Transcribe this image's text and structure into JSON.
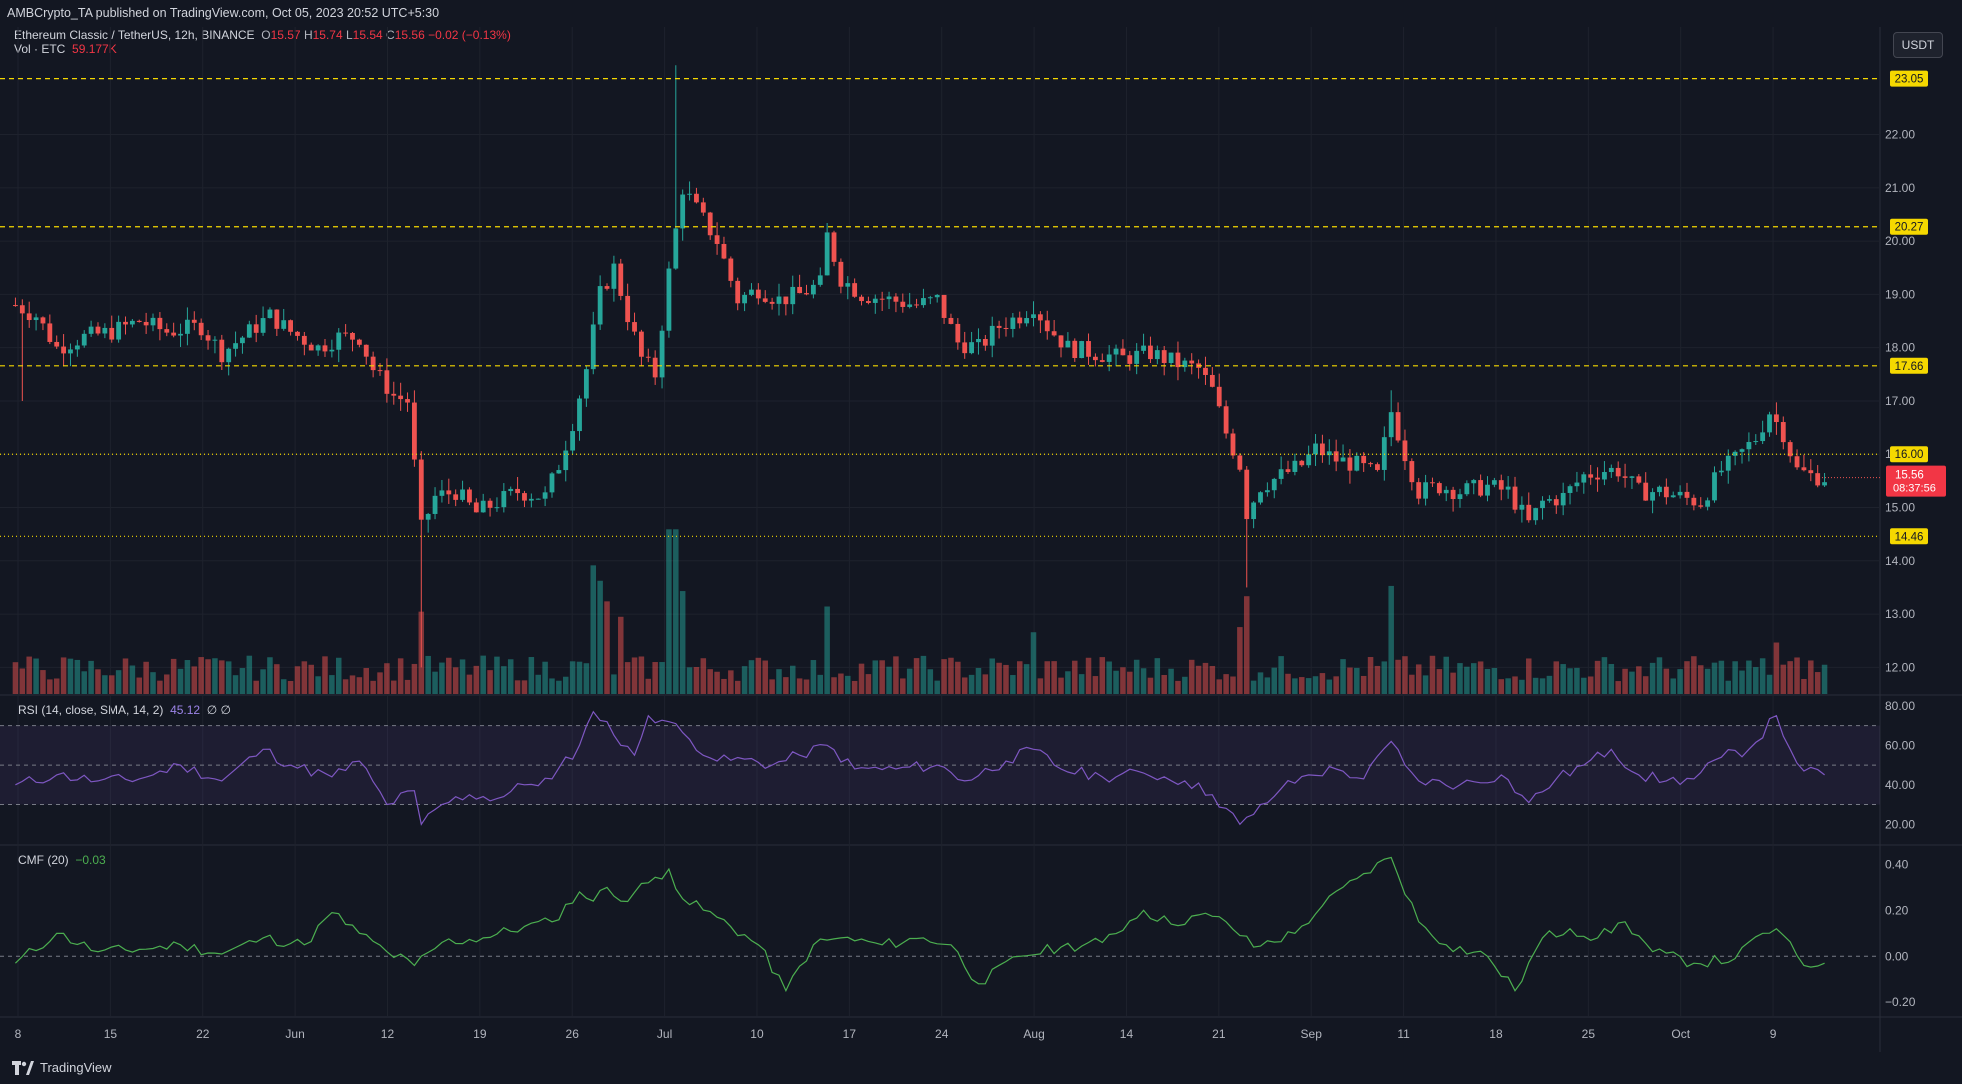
{
  "header": {
    "published_text": "AMBCrypto_TA published on TradingView.com, Oct 05, 2023 20:52 UTC+5:30"
  },
  "legend": {
    "symbol": "Ethereum Classic / TetherUS, 12h, BINANCE",
    "o_label": "O",
    "o_value": "15.57",
    "h_label": "H",
    "h_value": "15.74",
    "l_label": "L",
    "l_value": "15.54",
    "c_label": "C",
    "c_value": "15.56",
    "change": "−0.02 (−0.13%)",
    "vol_label": "Vol · ETC",
    "vol_value": "59.177K"
  },
  "unit_button": "USDT",
  "footer": {
    "brand": "TradingView"
  },
  "colors": {
    "background": "#131722",
    "up": "#26a69a",
    "down": "#ef5350",
    "level_line": "#f5d800",
    "rsi_line": "#7e57c2",
    "cmf_line": "#4caf50"
  },
  "chart_data": [
    {
      "type": "candlestick",
      "title": "Ethereum Classic / TetherUS, 12h, BINANCE",
      "x_ticks": [
        "8",
        "15",
        "22",
        "Jun",
        "12",
        "19",
        "26",
        "Jul",
        "10",
        "17",
        "24",
        "Aug",
        "14",
        "21",
        "Sep",
        "11",
        "18",
        "25",
        "Oct",
        "9"
      ],
      "y_ticks": [
        "12.00",
        "13.00",
        "14.00",
        "15.00",
        "16.00",
        "17.00",
        "18.00",
        "19.00",
        "20.00",
        "21.00",
        "22.00"
      ],
      "ylim": [
        11.5,
        24.0
      ],
      "horizontal_levels": [
        {
          "label": "23.05",
          "value": 23.05,
          "style": "dashed"
        },
        {
          "label": "20.27",
          "value": 20.27,
          "style": "dashed"
        },
        {
          "label": "17.66",
          "value": 17.66,
          "style": "dashed"
        },
        {
          "label": "16.00",
          "value": 16.0,
          "style": "dotted"
        },
        {
          "label": "14.46",
          "value": 14.46,
          "style": "dotted"
        }
      ],
      "last_price": {
        "price": "15.56",
        "countdown": "08:37:56"
      },
      "close_path": [
        {
          "t": 0,
          "c": 18.8
        },
        {
          "t": 3,
          "c": 18.6
        },
        {
          "t": 6,
          "c": 18.0
        },
        {
          "t": 10,
          "c": 18.2
        },
        {
          "t": 14,
          "c": 18.3
        },
        {
          "t": 18,
          "c": 18.5
        },
        {
          "t": 22,
          "c": 18.3
        },
        {
          "t": 27,
          "c": 18.4
        },
        {
          "t": 30,
          "c": 17.9
        },
        {
          "t": 34,
          "c": 18.3
        },
        {
          "t": 37,
          "c": 18.6
        },
        {
          "t": 40,
          "c": 18.3
        },
        {
          "t": 44,
          "c": 18.0
        },
        {
          "t": 47,
          "c": 18.2
        },
        {
          "t": 50,
          "c": 18.2
        },
        {
          "t": 52,
          "c": 17.6
        },
        {
          "t": 55,
          "c": 17.1
        },
        {
          "t": 57,
          "c": 17.0
        },
        {
          "t": 59,
          "c": 14.6
        },
        {
          "t": 61,
          "c": 15.2
        },
        {
          "t": 64,
          "c": 15.3
        },
        {
          "t": 67,
          "c": 14.9
        },
        {
          "t": 70,
          "c": 15.1
        },
        {
          "t": 73,
          "c": 15.3
        },
        {
          "t": 77,
          "c": 15.2
        },
        {
          "t": 79,
          "c": 15.8
        },
        {
          "t": 81,
          "c": 16.6
        },
        {
          "t": 83,
          "c": 17.6
        },
        {
          "t": 85,
          "c": 19.0
        },
        {
          "t": 87,
          "c": 19.5
        },
        {
          "t": 89,
          "c": 18.6
        },
        {
          "t": 91,
          "c": 17.8
        },
        {
          "t": 93,
          "c": 17.5
        },
        {
          "t": 95,
          "c": 19.4
        },
        {
          "t": 97,
          "c": 21.0
        },
        {
          "t": 99,
          "c": 20.6
        },
        {
          "t": 102,
          "c": 20.0
        },
        {
          "t": 105,
          "c": 18.9
        },
        {
          "t": 108,
          "c": 19.1
        },
        {
          "t": 111,
          "c": 18.9
        },
        {
          "t": 114,
          "c": 19.0
        },
        {
          "t": 117,
          "c": 19.2
        },
        {
          "t": 118,
          "c": 20.1
        },
        {
          "t": 120,
          "c": 19.3
        },
        {
          "t": 123,
          "c": 19.0
        },
        {
          "t": 127,
          "c": 18.9
        },
        {
          "t": 131,
          "c": 18.8
        },
        {
          "t": 134,
          "c": 18.9
        },
        {
          "t": 137,
          "c": 18.1
        },
        {
          "t": 140,
          "c": 18.0
        },
        {
          "t": 143,
          "c": 18.4
        },
        {
          "t": 146,
          "c": 18.6
        },
        {
          "t": 148,
          "c": 18.8
        },
        {
          "t": 150,
          "c": 18.4
        },
        {
          "t": 153,
          "c": 18.0
        },
        {
          "t": 157,
          "c": 17.9
        },
        {
          "t": 161,
          "c": 17.8
        },
        {
          "t": 165,
          "c": 17.9
        },
        {
          "t": 169,
          "c": 17.7
        },
        {
          "t": 172,
          "c": 17.6
        },
        {
          "t": 174,
          "c": 17.2
        },
        {
          "t": 176,
          "c": 16.4
        },
        {
          "t": 178,
          "c": 15.8
        },
        {
          "t": 179,
          "c": 14.9
        },
        {
          "t": 181,
          "c": 15.4
        },
        {
          "t": 184,
          "c": 15.6
        },
        {
          "t": 187,
          "c": 15.8
        },
        {
          "t": 189,
          "c": 16.1
        },
        {
          "t": 192,
          "c": 15.9
        },
        {
          "t": 195,
          "c": 15.8
        },
        {
          "t": 198,
          "c": 15.6
        },
        {
          "t": 200,
          "c": 16.8
        },
        {
          "t": 202,
          "c": 16.0
        },
        {
          "t": 204,
          "c": 15.3
        },
        {
          "t": 207,
          "c": 15.4
        },
        {
          "t": 210,
          "c": 15.3
        },
        {
          "t": 214,
          "c": 15.4
        },
        {
          "t": 217,
          "c": 15.3
        },
        {
          "t": 220,
          "c": 14.7
        },
        {
          "t": 222,
          "c": 15.1
        },
        {
          "t": 225,
          "c": 15.2
        },
        {
          "t": 228,
          "c": 15.6
        },
        {
          "t": 231,
          "c": 15.7
        },
        {
          "t": 233,
          "c": 15.7
        },
        {
          "t": 236,
          "c": 15.3
        },
        {
          "t": 239,
          "c": 15.3
        },
        {
          "t": 242,
          "c": 15.2
        },
        {
          "t": 245,
          "c": 15.1
        },
        {
          "t": 248,
          "c": 15.7
        },
        {
          "t": 250,
          "c": 15.9
        },
        {
          "t": 253,
          "c": 16.3
        },
        {
          "t": 255,
          "c": 16.8
        },
        {
          "t": 257,
          "c": 16.4
        },
        {
          "t": 259,
          "c": 15.7
        },
        {
          "t": 261,
          "c": 15.6
        },
        {
          "t": 263,
          "c": 15.56
        }
      ]
    },
    {
      "type": "line",
      "title": "RSI (14, close, SMA, 14, 2)",
      "current_value": "45.12",
      "extra": "∅ ∅",
      "y_ticks": [
        "20.00",
        "40.00",
        "60.00",
        "80.00"
      ],
      "ylim": [
        10,
        85
      ],
      "bands": [
        30,
        50,
        70
      ],
      "series": [
        {
          "values": [
            [
              0,
              40
            ],
            [
              6,
              45
            ],
            [
              12,
              42
            ],
            [
              18,
              43
            ],
            [
              24,
              50
            ],
            [
              30,
              42
            ],
            [
              36,
              58
            ],
            [
              40,
              50
            ],
            [
              46,
              44
            ],
            [
              50,
              52
            ],
            [
              54,
              30
            ],
            [
              58,
              37
            ],
            [
              59,
              20
            ],
            [
              62,
              30
            ],
            [
              66,
              35
            ],
            [
              70,
              33
            ],
            [
              74,
              40
            ],
            [
              78,
              43
            ],
            [
              82,
              60
            ],
            [
              84,
              77
            ],
            [
              86,
              72
            ],
            [
              88,
              60
            ],
            [
              90,
              55
            ],
            [
              92,
              75
            ],
            [
              95,
              72
            ],
            [
              98,
              63
            ],
            [
              102,
              52
            ],
            [
              106,
              53
            ],
            [
              110,
              50
            ],
            [
              114,
              55
            ],
            [
              118,
              60
            ],
            [
              122,
              48
            ],
            [
              128,
              48
            ],
            [
              134,
              50
            ],
            [
              138,
              42
            ],
            [
              144,
              52
            ],
            [
              148,
              58
            ],
            [
              152,
              48
            ],
            [
              158,
              44
            ],
            [
              164,
              46
            ],
            [
              170,
              42
            ],
            [
              174,
              35
            ],
            [
              178,
              20
            ],
            [
              180,
              25
            ],
            [
              184,
              38
            ],
            [
              188,
              45
            ],
            [
              192,
              48
            ],
            [
              196,
              43
            ],
            [
              200,
              62
            ],
            [
              202,
              50
            ],
            [
              204,
              42
            ],
            [
              210,
              40
            ],
            [
              216,
              45
            ],
            [
              220,
              31
            ],
            [
              224,
              43
            ],
            [
              228,
              50
            ],
            [
              232,
              58
            ],
            [
              236,
              45
            ],
            [
              240,
              42
            ],
            [
              244,
              43
            ],
            [
              248,
              54
            ],
            [
              252,
              58
            ],
            [
              256,
              75
            ],
            [
              258,
              58
            ],
            [
              260,
              47
            ],
            [
              263,
              45
            ]
          ]
        }
      ]
    },
    {
      "type": "line",
      "title": "CMF (20)",
      "current_value": "−0.03",
      "y_ticks": [
        "−0.20",
        "0.00",
        "0.20",
        "0.40"
      ],
      "ylim": [
        -0.26,
        0.48
      ],
      "zero_line": 0,
      "series": [
        {
          "values": [
            [
              0,
              -0.03
            ],
            [
              6,
              0.1
            ],
            [
              12,
              0.02
            ],
            [
              18,
              0.03
            ],
            [
              24,
              0.05
            ],
            [
              30,
              0.01
            ],
            [
              36,
              0.08
            ],
            [
              42,
              0.05
            ],
            [
              46,
              0.19
            ],
            [
              50,
              0.1
            ],
            [
              54,
              0.02
            ],
            [
              58,
              -0.04
            ],
            [
              62,
              0.06
            ],
            [
              68,
              0.08
            ],
            [
              74,
              0.13
            ],
            [
              78,
              0.15
            ],
            [
              82,
              0.28
            ],
            [
              84,
              0.24
            ],
            [
              86,
              0.3
            ],
            [
              88,
              0.24
            ],
            [
              92,
              0.32
            ],
            [
              95,
              0.38
            ],
            [
              97,
              0.25
            ],
            [
              102,
              0.17
            ],
            [
              108,
              0.05
            ],
            [
              112,
              -0.15
            ],
            [
              116,
              0.05
            ],
            [
              120,
              0.08
            ],
            [
              126,
              0.05
            ],
            [
              132,
              0.08
            ],
            [
              136,
              0.05
            ],
            [
              140,
              -0.12
            ],
            [
              146,
              0.0
            ],
            [
              152,
              0.04
            ],
            [
              158,
              0.06
            ],
            [
              164,
              0.2
            ],
            [
              168,
              0.14
            ],
            [
              172,
              0.18
            ],
            [
              176,
              0.15
            ],
            [
              180,
              0.04
            ],
            [
              186,
              0.1
            ],
            [
              190,
              0.22
            ],
            [
              196,
              0.36
            ],
            [
              200,
              0.43
            ],
            [
              204,
              0.15
            ],
            [
              208,
              0.05
            ],
            [
              214,
              0.0
            ],
            [
              218,
              -0.15
            ],
            [
              222,
              0.08
            ],
            [
              226,
              0.12
            ],
            [
              230,
              0.08
            ],
            [
              234,
              0.15
            ],
            [
              238,
              0.02
            ],
            [
              244,
              -0.03
            ],
            [
              250,
              -0.01
            ],
            [
              254,
              0.1
            ],
            [
              256,
              0.12
            ],
            [
              260,
              -0.04
            ],
            [
              263,
              -0.03
            ]
          ]
        }
      ]
    }
  ]
}
